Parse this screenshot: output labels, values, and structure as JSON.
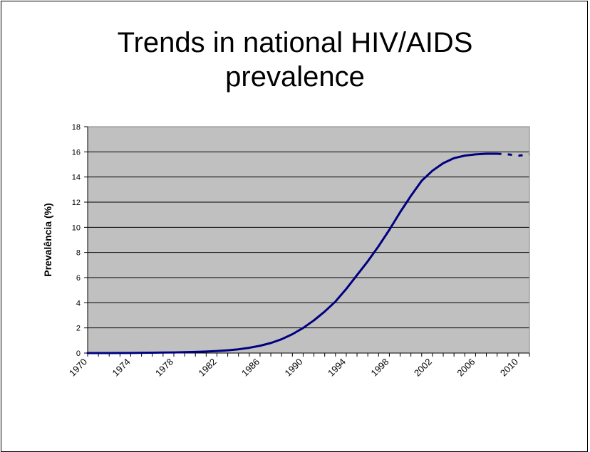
{
  "chart_data": {
    "type": "line",
    "title": [
      "Trends in national HIV/AIDS",
      "prevalence"
    ],
    "ylabel": "Prevalência (%)",
    "xlabel": "",
    "xlim": [
      1970,
      2011
    ],
    "ylim": [
      0,
      18
    ],
    "yticks": [
      0,
      2,
      4,
      6,
      8,
      10,
      12,
      14,
      16,
      18
    ],
    "xticks": [
      "1970",
      "1974",
      "1978",
      "1982",
      "1986",
      "1990",
      "1994",
      "1998",
      "2002",
      "2006",
      "2010"
    ],
    "grid": true,
    "plot_background": "#c0c0c0",
    "line_color": "#000080",
    "series": [
      {
        "x": [
          1970,
          1971,
          1972,
          1973,
          1974,
          1975,
          1976,
          1977,
          1978,
          1979,
          1980,
          1981,
          1982,
          1983,
          1984,
          1985,
          1986,
          1987,
          1988,
          1989,
          1990,
          1991,
          1992,
          1993,
          1994,
          1995,
          1996,
          1997,
          1998,
          1999,
          2000,
          2001,
          2002,
          2003,
          2004,
          2005,
          2006,
          2007,
          2008
        ],
        "values": [
          0.0,
          0.0,
          0.0,
          0.01,
          0.01,
          0.02,
          0.03,
          0.04,
          0.05,
          0.07,
          0.09,
          0.12,
          0.16,
          0.22,
          0.3,
          0.42,
          0.58,
          0.8,
          1.1,
          1.5,
          2.0,
          2.6,
          3.3,
          4.1,
          5.1,
          6.2,
          7.3,
          8.5,
          9.8,
          11.2,
          12.5,
          13.7,
          14.5,
          15.1,
          15.5,
          15.7,
          15.8,
          15.85,
          15.85
        ]
      },
      {
        "dashed": true,
        "x": [
          2008,
          2009,
          2010,
          2011
        ],
        "values": [
          15.85,
          15.8,
          15.7,
          15.8
        ]
      }
    ]
  }
}
